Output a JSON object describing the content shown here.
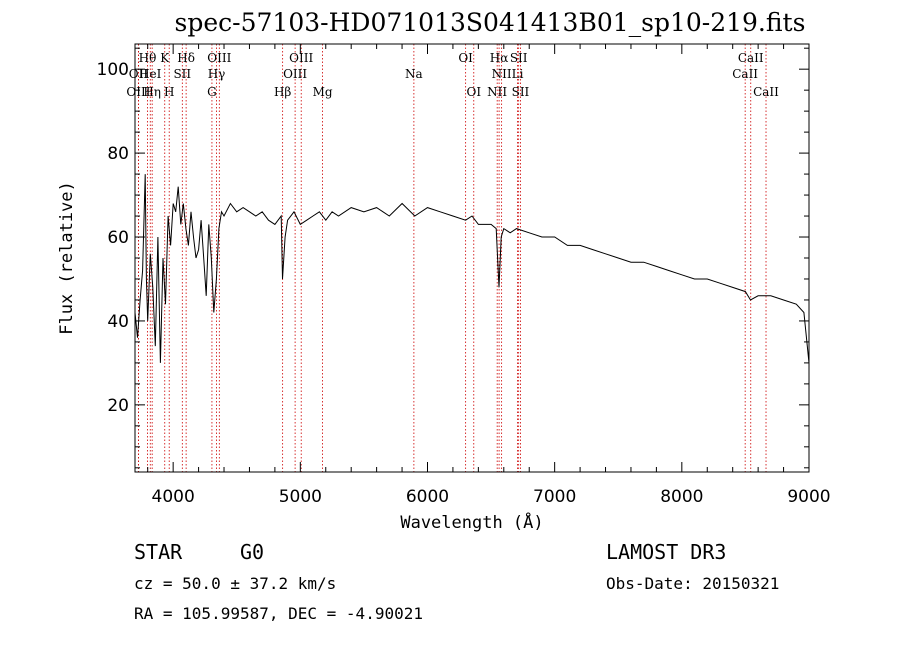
{
  "title": "spec-57103-HD071013S041413B01_sp10-219.fits",
  "chart_data": {
    "type": "line",
    "title": "spec-57103-HD071013S041413B01_sp10-219.fits",
    "xlabel": "Wavelength (Å)",
    "ylabel": "Flux (relative)",
    "xlim": [
      3700,
      9000
    ],
    "ylim": [
      4,
      106
    ],
    "xticks": [
      4000,
      5000,
      6000,
      7000,
      8000,
      9000
    ],
    "yticks": [
      20,
      40,
      60,
      80,
      100
    ],
    "series": [
      {
        "name": "flux",
        "x": [
          3700,
          3720,
          3740,
          3760,
          3780,
          3790,
          3800,
          3820,
          3840,
          3860,
          3880,
          3900,
          3920,
          3940,
          3960,
          3980,
          4000,
          4020,
          4040,
          4060,
          4080,
          4100,
          4120,
          4140,
          4160,
          4180,
          4200,
          4220,
          4240,
          4260,
          4280,
          4300,
          4320,
          4340,
          4360,
          4380,
          4400,
          4450,
          4500,
          4550,
          4600,
          4650,
          4700,
          4750,
          4800,
          4850,
          4860,
          4880,
          4900,
          4950,
          5000,
          5050,
          5100,
          5150,
          5200,
          5250,
          5300,
          5400,
          5500,
          5600,
          5700,
          5800,
          5900,
          6000,
          6100,
          6200,
          6300,
          6350,
          6400,
          6500,
          6540,
          6562,
          6580,
          6600,
          6650,
          6700,
          6800,
          6900,
          7000,
          7100,
          7200,
          7300,
          7400,
          7500,
          7600,
          7700,
          7800,
          7900,
          8000,
          8100,
          8200,
          8300,
          8400,
          8500,
          8540,
          8600,
          8700,
          8800,
          8900,
          8960,
          9000
        ],
        "y": [
          42,
          36,
          45,
          52,
          75,
          50,
          40,
          56,
          48,
          34,
          60,
          30,
          55,
          44,
          65,
          58,
          68,
          66,
          72,
          63,
          68,
          62,
          58,
          66,
          60,
          55,
          57,
          64,
          55,
          46,
          63,
          55,
          42,
          50,
          62,
          66,
          65,
          68,
          66,
          67,
          66,
          65,
          66,
          64,
          63,
          65,
          50,
          60,
          64,
          66,
          63,
          64,
          65,
          66,
          64,
          66,
          65,
          67,
          66,
          67,
          65,
          68,
          65,
          67,
          66,
          65,
          64,
          65,
          63,
          63,
          62,
          48,
          60,
          62,
          61,
          62,
          61,
          60,
          60,
          58,
          58,
          57,
          56,
          55,
          54,
          54,
          53,
          52,
          51,
          50,
          50,
          49,
          48,
          47,
          45,
          46,
          46,
          45,
          44,
          42,
          30
        ]
      }
    ],
    "lines": [
      {
        "name": "Hθ",
        "x": 3798,
        "row": 1
      },
      {
        "name": "OII",
        "x": 3727,
        "row": 2
      },
      {
        "name": "OIII",
        "x": 3727,
        "row": 3
      },
      {
        "name": "HeI",
        "x": 3820,
        "row": 2
      },
      {
        "name": "Hη",
        "x": 3835,
        "row": 3
      },
      {
        "name": "K",
        "x": 3934,
        "row": 1
      },
      {
        "name": "SII",
        "x": 4072,
        "row": 2
      },
      {
        "name": "H",
        "x": 3969,
        "row": 3
      },
      {
        "name": "Hδ",
        "x": 4102,
        "row": 1
      },
      {
        "name": "OIII",
        "x": 4363,
        "row": 1
      },
      {
        "name": "Hγ",
        "x": 4341,
        "row": 2
      },
      {
        "name": "G",
        "x": 4305,
        "row": 3
      },
      {
        "name": "OIII",
        "x": 5007,
        "row": 1
      },
      {
        "name": "OIII",
        "x": 4959,
        "row": 2
      },
      {
        "name": "Hβ",
        "x": 4861,
        "row": 3
      },
      {
        "name": "Mg",
        "x": 5175,
        "row": 3
      },
      {
        "name": "Na",
        "x": 5893,
        "row": 2
      },
      {
        "name": "OI",
        "x": 6300,
        "row": 1
      },
      {
        "name": "OI",
        "x": 6364,
        "row": 3
      },
      {
        "name": "Hα",
        "x": 6563,
        "row": 1
      },
      {
        "name": "SII",
        "x": 6717,
        "row": 1
      },
      {
        "name": "NII",
        "x": 6583,
        "row": 2
      },
      {
        "name": "Li",
        "x": 6708,
        "row": 2
      },
      {
        "name": "NII",
        "x": 6548,
        "row": 3
      },
      {
        "name": "SII",
        "x": 6731,
        "row": 3
      },
      {
        "name": "CaII",
        "x": 8542,
        "row": 1
      },
      {
        "name": "CaII",
        "x": 8498,
        "row": 2
      },
      {
        "name": "CaII",
        "x": 8662,
        "row": 3
      }
    ],
    "line_color": "#cc0000"
  },
  "info": {
    "class": "STAR",
    "subclass": "G0",
    "survey": "LAMOST DR3",
    "cz": "cz = 50.0 ± 37.2 km/s",
    "obs_date": "Obs-Date: 20150321",
    "coords": "RA = 105.99587, DEC =  -4.90021"
  }
}
